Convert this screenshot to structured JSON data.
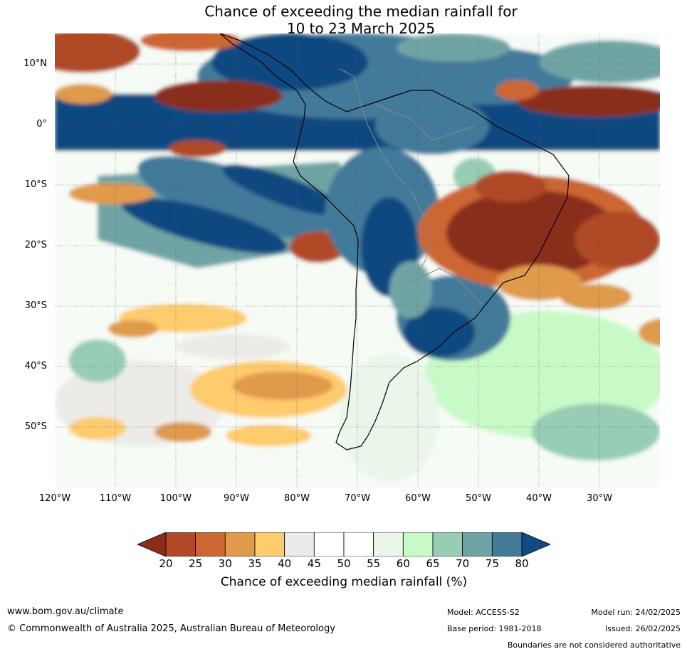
{
  "title_line1": "Chance of exceeding the median rainfall for",
  "title_line2": "10 to 23 March 2025",
  "lat_labels": [
    "10°N",
    "0°",
    "10°S",
    "20°S",
    "30°S",
    "40°S",
    "50°S"
  ],
  "lon_labels": [
    "120°W",
    "110°W",
    "100°W",
    "90°W",
    "80°W",
    "70°W",
    "60°W",
    "50°W",
    "40°W",
    "30°W"
  ],
  "colorbar": {
    "ticks": [
      "20",
      "25",
      "30",
      "35",
      "40",
      "45",
      "50",
      "55",
      "60",
      "65",
      "70",
      "75",
      "80"
    ],
    "colors": [
      "#8a2e1a",
      "#b04a28",
      "#cc6633",
      "#e09a4c",
      "#fecb6d",
      "#ecebe7",
      "#ffffff",
      "#ffffff",
      "#eaf6ea",
      "#c8fac8",
      "#96cdb4",
      "#6fa4a4",
      "#437a9a",
      "#114a80"
    ],
    "label": "Chance of exceeding median rainfall (%)"
  },
  "footer": {
    "url": "www.bom.gov.au/climate",
    "copyright": "© Commonwealth of Australia 2025, Australian Bureau of Meteorology",
    "model": "Model: ACCESS-S2",
    "base_period": "Base period: 1981-2018",
    "model_run": "Model run: 24/02/2025",
    "issued": "Issued: 26/02/2025",
    "disclaimer": "Boundaries are not considered authoritative"
  }
}
